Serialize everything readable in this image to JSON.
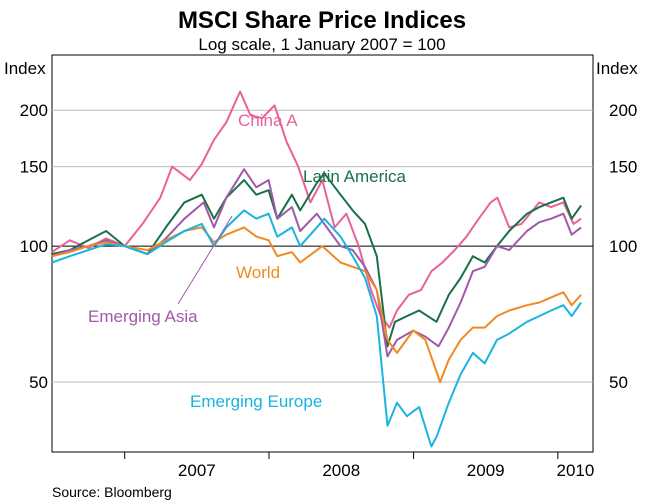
{
  "chart_data": {
    "type": "line",
    "title": "MSCI Share Price Indices",
    "subtitle": "Log scale, 1 January 2007 = 100",
    "ylabel_left": "Index",
    "ylabel_right": "Index",
    "yscale": "log",
    "ylim": [
      35,
      265
    ],
    "yticks": [
      50,
      100,
      150,
      200
    ],
    "reference_line": 100,
    "xlim": [
      "2006-07-01",
      "2010-03-31"
    ],
    "xtick_labels": [
      "2007",
      "2008",
      "2009",
      "2010"
    ],
    "grid": true,
    "source": "Source: Bloomberg",
    "series": [
      {
        "name": "China A",
        "color": "#e8619c",
        "points": [
          [
            "2006-07-01",
            97
          ],
          [
            "2006-08-15",
            103
          ],
          [
            "2006-10-01",
            99
          ],
          [
            "2006-11-15",
            104
          ],
          [
            "2007-01-01",
            100
          ],
          [
            "2007-02-15",
            112
          ],
          [
            "2007-04-01",
            128
          ],
          [
            "2007-05-01",
            150
          ],
          [
            "2007-06-15",
            140
          ],
          [
            "2007-07-15",
            152
          ],
          [
            "2007-08-15",
            172
          ],
          [
            "2007-09-15",
            188
          ],
          [
            "2007-10-20",
            220
          ],
          [
            "2007-11-15",
            195
          ],
          [
            "2007-12-15",
            192
          ],
          [
            "2008-01-15",
            205
          ],
          [
            "2008-02-15",
            170
          ],
          [
            "2008-03-15",
            150
          ],
          [
            "2008-04-15",
            125
          ],
          [
            "2008-05-15",
            140
          ],
          [
            "2008-06-15",
            110
          ],
          [
            "2008-07-15",
            118
          ],
          [
            "2008-08-15",
            100
          ],
          [
            "2008-09-15",
            80
          ],
          [
            "2008-10-10",
            70
          ],
          [
            "2008-11-01",
            66
          ],
          [
            "2008-11-20",
            72
          ],
          [
            "2008-12-20",
            78
          ],
          [
            "2009-01-20",
            80
          ],
          [
            "2009-02-15",
            88
          ],
          [
            "2009-03-15",
            92
          ],
          [
            "2009-04-15",
            98
          ],
          [
            "2009-05-15",
            105
          ],
          [
            "2009-06-15",
            115
          ],
          [
            "2009-07-15",
            125
          ],
          [
            "2009-08-01",
            128
          ],
          [
            "2009-08-31",
            110
          ],
          [
            "2009-10-01",
            112
          ],
          [
            "2009-11-15",
            125
          ],
          [
            "2009-12-15",
            122
          ],
          [
            "2010-01-15",
            125
          ],
          [
            "2010-02-10",
            112
          ],
          [
            "2010-03-01",
            115
          ]
        ]
      },
      {
        "name": "Latin America",
        "color": "#1a7048",
        "points": [
          [
            "2006-07-01",
            96
          ],
          [
            "2006-08-15",
            98
          ],
          [
            "2006-10-01",
            103
          ],
          [
            "2006-11-15",
            108
          ],
          [
            "2007-01-01",
            100
          ],
          [
            "2007-02-28",
            96
          ],
          [
            "2007-04-15",
            110
          ],
          [
            "2007-06-01",
            125
          ],
          [
            "2007-07-15",
            130
          ],
          [
            "2007-08-15",
            115
          ],
          [
            "2007-09-15",
            128
          ],
          [
            "2007-10-30",
            140
          ],
          [
            "2007-11-30",
            130
          ],
          [
            "2007-12-31",
            133
          ],
          [
            "2008-01-22",
            115
          ],
          [
            "2008-02-28",
            130
          ],
          [
            "2008-03-20",
            120
          ],
          [
            "2008-05-01",
            138
          ],
          [
            "2008-05-20",
            145
          ],
          [
            "2008-06-30",
            130
          ],
          [
            "2008-07-31",
            120
          ],
          [
            "2008-08-31",
            112
          ],
          [
            "2008-09-30",
            95
          ],
          [
            "2008-10-27",
            60
          ],
          [
            "2008-11-15",
            68
          ],
          [
            "2008-12-15",
            70
          ],
          [
            "2009-01-15",
            72
          ],
          [
            "2009-02-28",
            68
          ],
          [
            "2009-03-31",
            78
          ],
          [
            "2009-04-30",
            85
          ],
          [
            "2009-05-31",
            95
          ],
          [
            "2009-06-30",
            92
          ],
          [
            "2009-07-31",
            100
          ],
          [
            "2009-08-31",
            108
          ],
          [
            "2009-10-15",
            118
          ],
          [
            "2009-11-15",
            122
          ],
          [
            "2009-12-15",
            125
          ],
          [
            "2010-01-15",
            128
          ],
          [
            "2010-02-05",
            115
          ],
          [
            "2010-03-01",
            123
          ]
        ]
      },
      {
        "name": "Emerging Asia",
        "color": "#a05aa8",
        "points": [
          [
            "2006-07-01",
            95
          ],
          [
            "2006-08-15",
            98
          ],
          [
            "2006-10-01",
            100
          ],
          [
            "2006-11-15",
            103
          ],
          [
            "2007-01-01",
            100
          ],
          [
            "2007-02-28",
            96
          ],
          [
            "2007-04-15",
            104
          ],
          [
            "2007-06-01",
            115
          ],
          [
            "2007-07-20",
            125
          ],
          [
            "2007-08-15",
            110
          ],
          [
            "2007-09-15",
            128
          ],
          [
            "2007-10-30",
            148
          ],
          [
            "2007-11-30",
            135
          ],
          [
            "2007-12-31",
            140
          ],
          [
            "2008-01-22",
            115
          ],
          [
            "2008-02-28",
            122
          ],
          [
            "2008-03-20",
            108
          ],
          [
            "2008-05-01",
            118
          ],
          [
            "2008-06-30",
            100
          ],
          [
            "2008-07-31",
            98
          ],
          [
            "2008-08-31",
            90
          ],
          [
            "2008-09-30",
            80
          ],
          [
            "2008-10-27",
            57
          ],
          [
            "2008-11-20",
            62
          ],
          [
            "2008-12-31",
            65
          ],
          [
            "2009-01-31",
            63
          ],
          [
            "2009-03-05",
            60
          ],
          [
            "2009-03-31",
            66
          ],
          [
            "2009-04-30",
            75
          ],
          [
            "2009-05-31",
            88
          ],
          [
            "2009-06-30",
            90
          ],
          [
            "2009-07-31",
            100
          ],
          [
            "2009-08-31",
            98
          ],
          [
            "2009-10-15",
            108
          ],
          [
            "2009-11-15",
            113
          ],
          [
            "2009-12-15",
            115
          ],
          [
            "2010-01-15",
            118
          ],
          [
            "2010-02-05",
            106
          ],
          [
            "2010-03-01",
            110
          ]
        ]
      },
      {
        "name": "World",
        "color": "#f08a22",
        "points": [
          [
            "2006-07-01",
            95
          ],
          [
            "2006-08-15",
            97
          ],
          [
            "2006-10-01",
            100
          ],
          [
            "2006-11-15",
            102
          ],
          [
            "2007-01-01",
            100
          ],
          [
            "2007-02-28",
            98
          ],
          [
            "2007-04-15",
            103
          ],
          [
            "2007-06-01",
            108
          ],
          [
            "2007-07-15",
            110
          ],
          [
            "2007-08-15",
            102
          ],
          [
            "2007-09-15",
            106
          ],
          [
            "2007-10-30",
            110
          ],
          [
            "2007-11-30",
            105
          ],
          [
            "2007-12-31",
            103
          ],
          [
            "2008-01-22",
            95
          ],
          [
            "2008-02-28",
            97
          ],
          [
            "2008-03-20",
            92
          ],
          [
            "2008-05-15",
            100
          ],
          [
            "2008-06-30",
            92
          ],
          [
            "2008-07-31",
            90
          ],
          [
            "2008-08-31",
            88
          ],
          [
            "2008-09-30",
            80
          ],
          [
            "2008-10-27",
            62
          ],
          [
            "2008-11-20",
            58
          ],
          [
            "2008-12-31",
            65
          ],
          [
            "2009-01-31",
            62
          ],
          [
            "2009-03-09",
            50
          ],
          [
            "2009-03-31",
            56
          ],
          [
            "2009-04-30",
            62
          ],
          [
            "2009-05-31",
            66
          ],
          [
            "2009-06-30",
            66
          ],
          [
            "2009-07-31",
            70
          ],
          [
            "2009-08-31",
            72
          ],
          [
            "2009-10-15",
            74
          ],
          [
            "2009-11-15",
            75
          ],
          [
            "2009-12-15",
            77
          ],
          [
            "2010-01-15",
            79
          ],
          [
            "2010-02-05",
            74
          ],
          [
            "2010-03-01",
            78
          ]
        ]
      },
      {
        "name": "Emerging Europe",
        "color": "#1ab4e0",
        "points": [
          [
            "2006-07-01",
            92
          ],
          [
            "2006-08-15",
            95
          ],
          [
            "2006-10-01",
            98
          ],
          [
            "2006-11-15",
            101
          ],
          [
            "2007-01-01",
            100
          ],
          [
            "2007-02-28",
            96
          ],
          [
            "2007-04-15",
            102
          ],
          [
            "2007-06-01",
            108
          ],
          [
            "2007-07-15",
            112
          ],
          [
            "2007-08-15",
            100
          ],
          [
            "2007-09-15",
            110
          ],
          [
            "2007-10-30",
            120
          ],
          [
            "2007-11-30",
            115
          ],
          [
            "2007-12-31",
            118
          ],
          [
            "2008-01-22",
            105
          ],
          [
            "2008-02-28",
            110
          ],
          [
            "2008-03-20",
            100
          ],
          [
            "2008-05-01",
            110
          ],
          [
            "2008-05-20",
            115
          ],
          [
            "2008-06-30",
            105
          ],
          [
            "2008-07-31",
            95
          ],
          [
            "2008-08-31",
            85
          ],
          [
            "2008-09-30",
            70
          ],
          [
            "2008-10-27",
            40
          ],
          [
            "2008-11-20",
            45
          ],
          [
            "2008-12-15",
            42
          ],
          [
            "2009-01-15",
            44
          ],
          [
            "2009-02-15",
            36
          ],
          [
            "2009-03-01",
            38
          ],
          [
            "2009-03-31",
            45
          ],
          [
            "2009-04-30",
            52
          ],
          [
            "2009-05-31",
            58
          ],
          [
            "2009-06-30",
            55
          ],
          [
            "2009-07-31",
            62
          ],
          [
            "2009-08-31",
            64
          ],
          [
            "2009-10-15",
            68
          ],
          [
            "2009-11-15",
            70
          ],
          [
            "2009-12-15",
            72
          ],
          [
            "2010-01-15",
            74
          ],
          [
            "2010-02-05",
            70
          ],
          [
            "2010-03-01",
            75
          ]
        ]
      }
    ],
    "labels": {
      "china_a": "China A",
      "latin_america": "Latin America",
      "world": "World",
      "emerging_asia": "Emerging Asia",
      "emerging_europe": "Emerging Europe"
    }
  }
}
